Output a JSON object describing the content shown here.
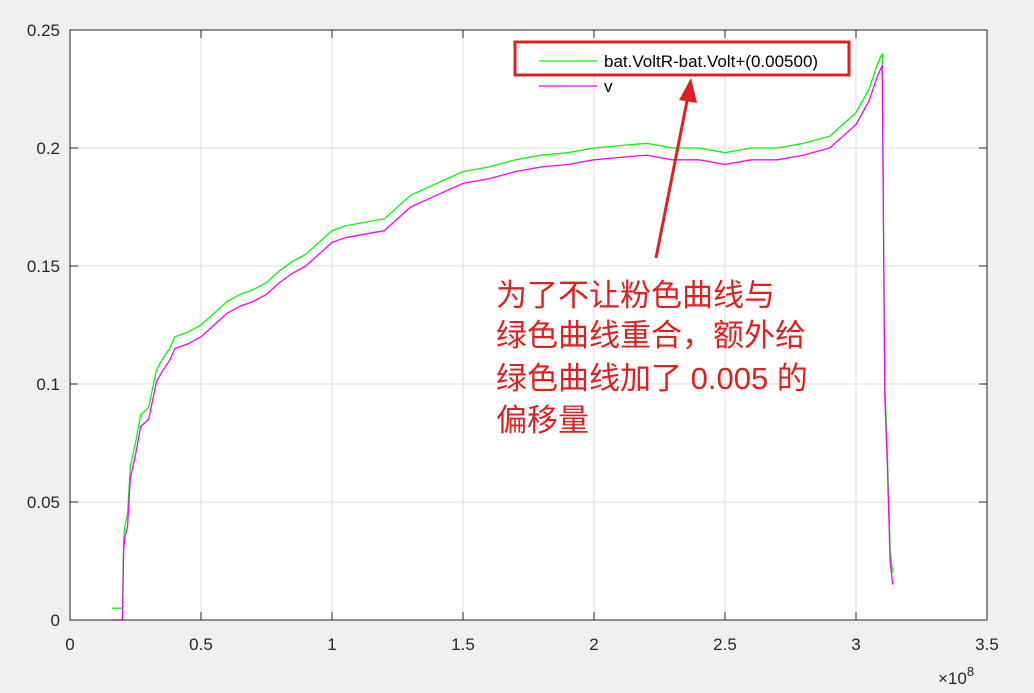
{
  "chart_data": {
    "type": "line",
    "title": "",
    "xlabel": "",
    "ylabel": "",
    "x_exponent_label": "×10",
    "x_exponent_power": "8",
    "xlim": [
      0,
      3.5
    ],
    "ylim": [
      0,
      0.25
    ],
    "x_scale_note": "x values in units of 1e8",
    "grid": true,
    "xticks": [
      "0",
      "0.5",
      "1",
      "1.5",
      "2",
      "2.5",
      "3",
      "3.5"
    ],
    "yticks": [
      "0",
      "0.05",
      "0.1",
      "0.15",
      "0.2",
      "0.25"
    ],
    "legend_position": "top-right",
    "series": [
      {
        "name": "bat.VoltR-bat.Volt+(0.00500)",
        "color": "#00ff00",
        "x": [
          0.16,
          0.19,
          0.2,
          0.205,
          0.21,
          0.22,
          0.23,
          0.25,
          0.27,
          0.3,
          0.33,
          0.35,
          0.38,
          0.4,
          0.45,
          0.5,
          0.55,
          0.6,
          0.65,
          0.7,
          0.75,
          0.8,
          0.85,
          0.9,
          0.95,
          1.0,
          1.05,
          1.1,
          1.2,
          1.3,
          1.4,
          1.5,
          1.6,
          1.7,
          1.8,
          1.9,
          2.0,
          2.1,
          2.2,
          2.3,
          2.4,
          2.5,
          2.6,
          2.7,
          2.8,
          2.9,
          2.95,
          3.0,
          3.05,
          3.08,
          3.1,
          3.11,
          3.12,
          3.13,
          3.14
        ],
        "values": [
          0.005,
          0.005,
          0.005,
          0.035,
          0.04,
          0.045,
          0.065,
          0.075,
          0.087,
          0.09,
          0.106,
          0.11,
          0.115,
          0.12,
          0.122,
          0.125,
          0.13,
          0.135,
          0.138,
          0.14,
          0.143,
          0.148,
          0.152,
          0.155,
          0.16,
          0.165,
          0.167,
          0.168,
          0.17,
          0.18,
          0.185,
          0.19,
          0.192,
          0.195,
          0.197,
          0.198,
          0.2,
          0.201,
          0.202,
          0.2,
          0.2,
          0.198,
          0.2,
          0.2,
          0.202,
          0.205,
          0.21,
          0.215,
          0.225,
          0.235,
          0.24,
          0.1,
          0.07,
          0.03,
          0.02
        ]
      },
      {
        "name": "v",
        "color": "#ff00ff",
        "x": [
          0.16,
          0.19,
          0.2,
          0.205,
          0.21,
          0.22,
          0.23,
          0.25,
          0.27,
          0.3,
          0.33,
          0.35,
          0.38,
          0.4,
          0.45,
          0.5,
          0.55,
          0.6,
          0.65,
          0.7,
          0.75,
          0.8,
          0.85,
          0.9,
          0.95,
          1.0,
          1.05,
          1.1,
          1.2,
          1.3,
          1.4,
          1.5,
          1.6,
          1.7,
          1.8,
          1.9,
          2.0,
          2.1,
          2.2,
          2.3,
          2.4,
          2.5,
          2.6,
          2.7,
          2.8,
          2.9,
          2.95,
          3.0,
          3.05,
          3.08,
          3.1,
          3.11,
          3.12,
          3.13,
          3.14
        ],
        "values": [
          0.0,
          0.0,
          0.0,
          0.03,
          0.035,
          0.04,
          0.06,
          0.07,
          0.082,
          0.085,
          0.101,
          0.105,
          0.11,
          0.115,
          0.117,
          0.12,
          0.125,
          0.13,
          0.133,
          0.135,
          0.138,
          0.143,
          0.147,
          0.15,
          0.155,
          0.16,
          0.162,
          0.163,
          0.165,
          0.175,
          0.18,
          0.185,
          0.187,
          0.19,
          0.192,
          0.193,
          0.195,
          0.196,
          0.197,
          0.195,
          0.195,
          0.193,
          0.195,
          0.195,
          0.197,
          0.2,
          0.205,
          0.21,
          0.22,
          0.23,
          0.235,
          0.095,
          0.065,
          0.025,
          0.015
        ]
      }
    ],
    "annotation": {
      "lines": [
        "为了不让粉色曲线与",
        "绿色曲线重合，额外给",
        "绿色曲线加了 0.005 的",
        "偏移量"
      ],
      "color": "#e02020"
    }
  }
}
